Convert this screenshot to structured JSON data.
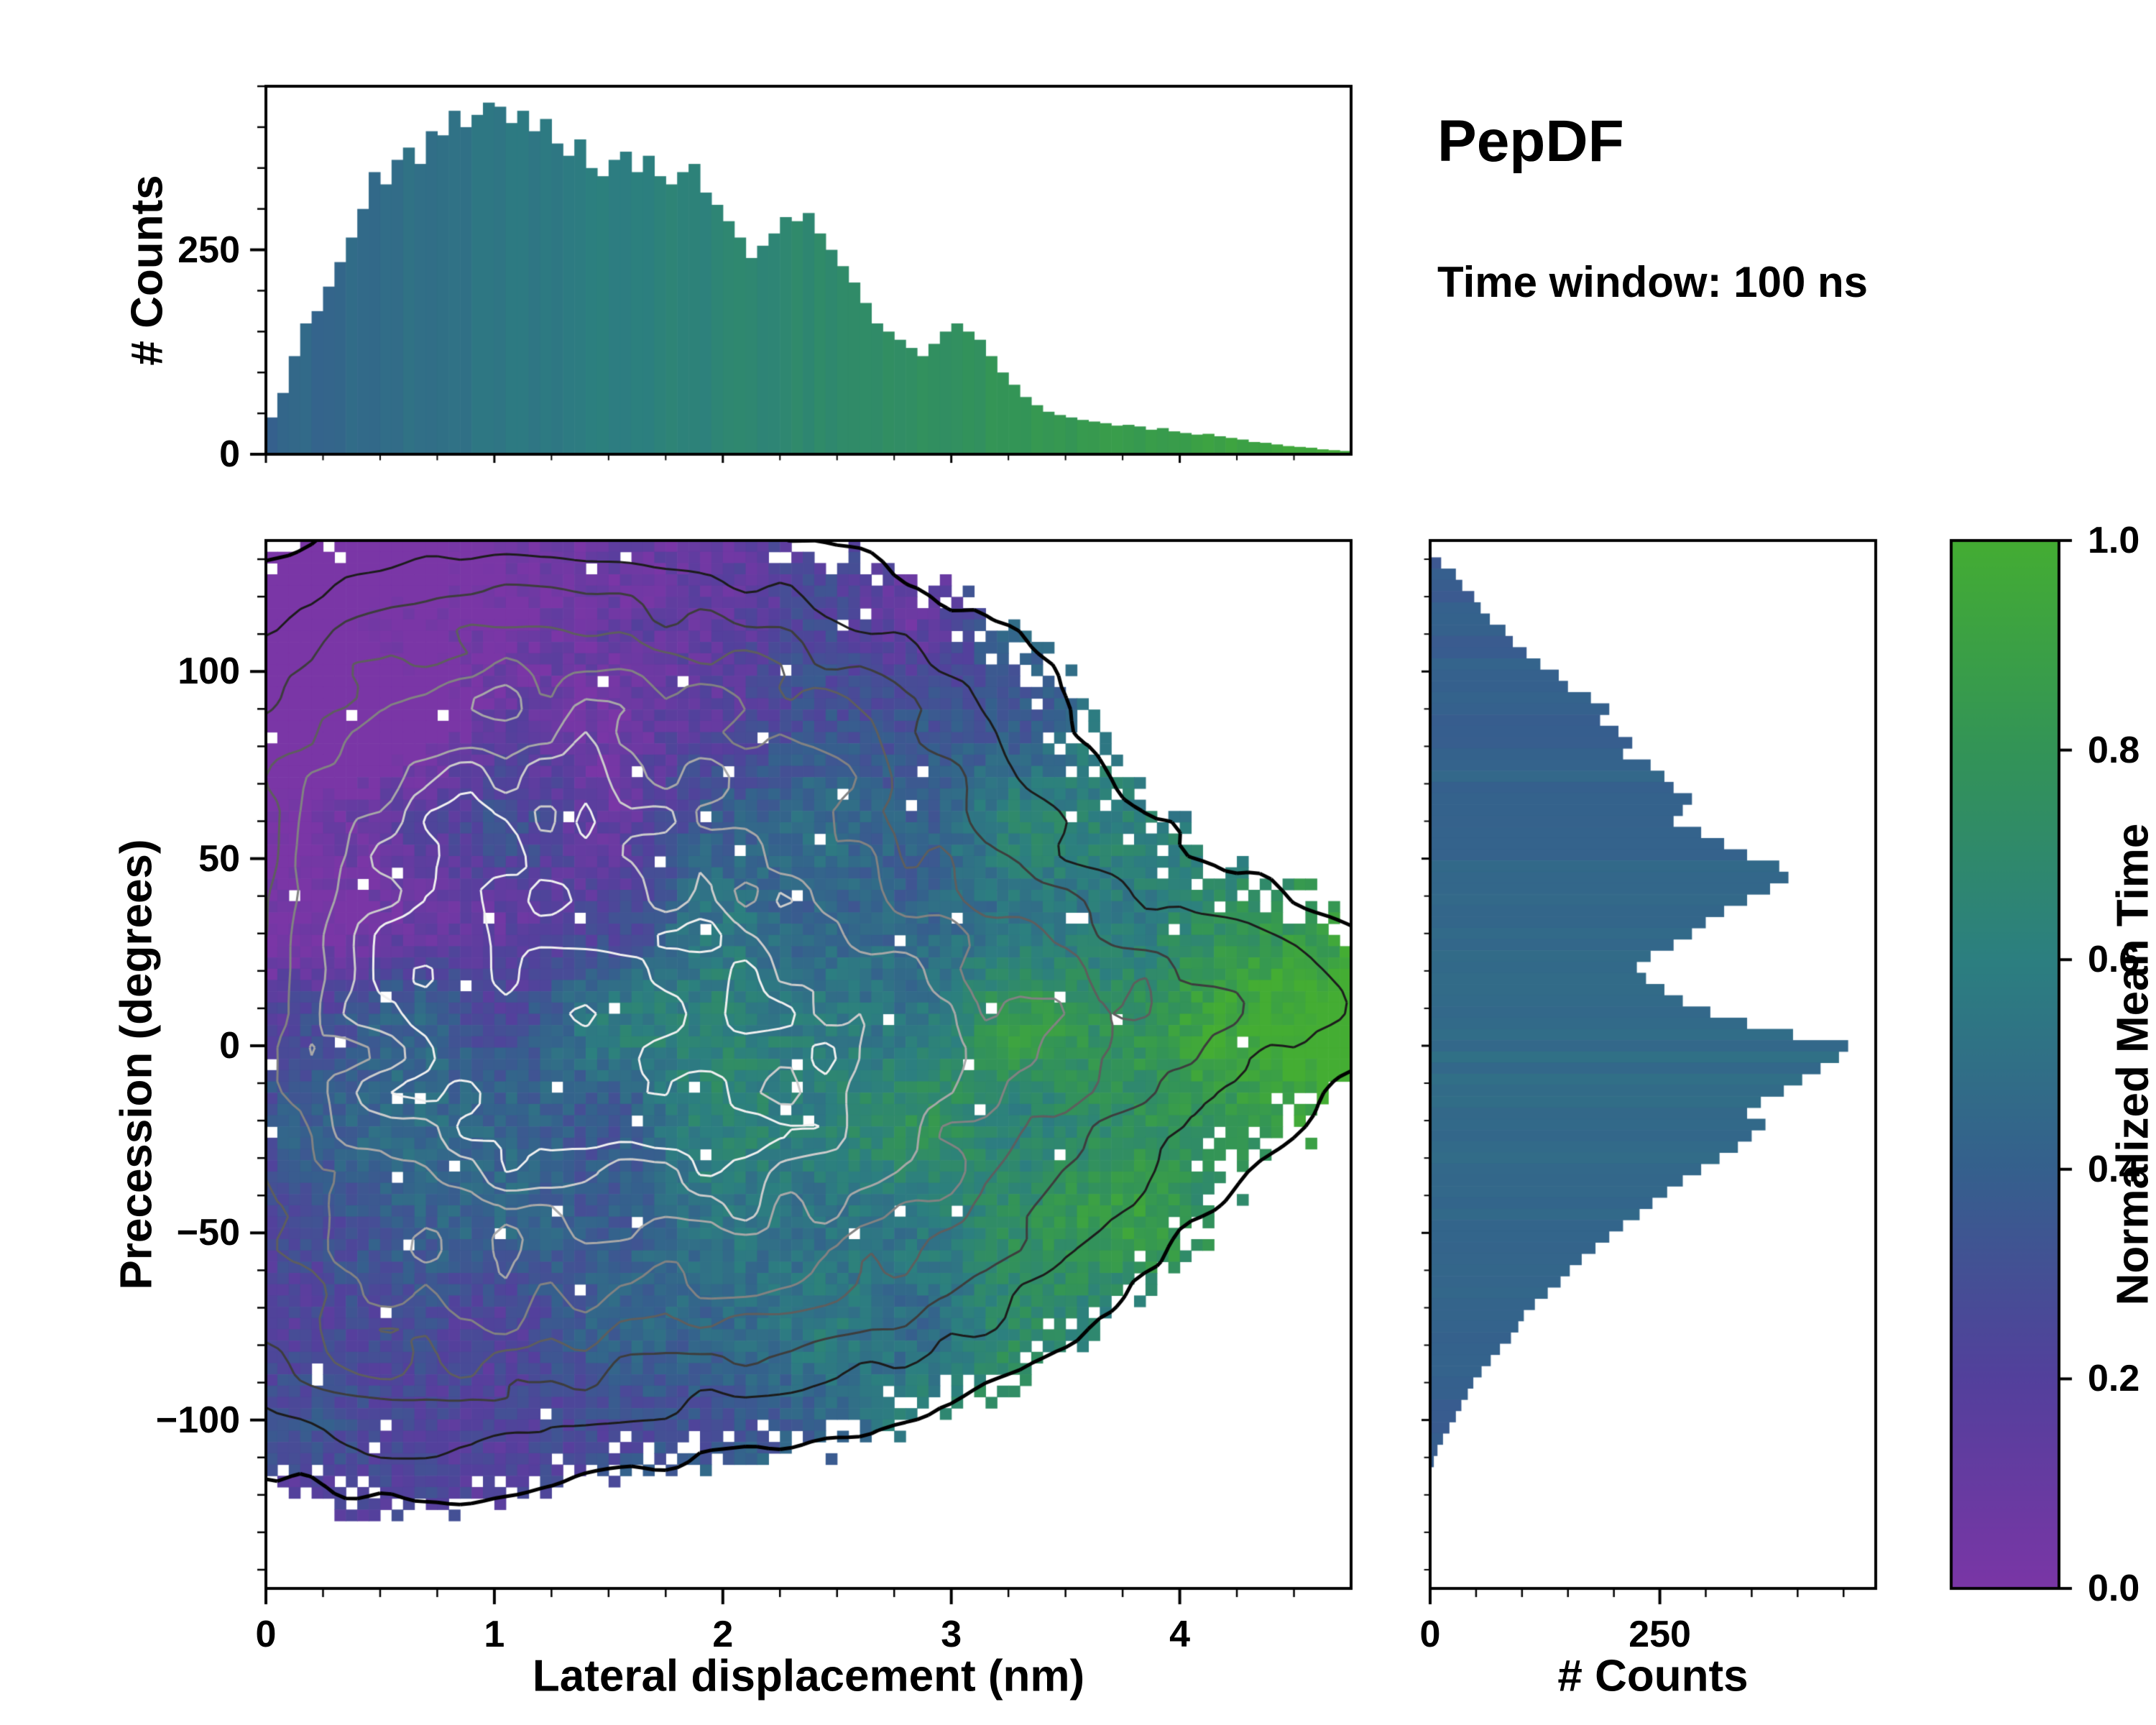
{
  "annotations": {
    "title": "PepDF",
    "subtitle": "Time window: 100 ns"
  },
  "colors": {
    "background": "#ffffff",
    "axis": "#000000",
    "contour_low": "#000000",
    "contour_high": "#f0f0f0",
    "colormap_stops": [
      {
        "t": 0.0,
        "hex": "#7a36a6"
      },
      {
        "t": 0.2,
        "hex": "#53409c"
      },
      {
        "t": 0.4,
        "hex": "#35608d"
      },
      {
        "t": 0.6,
        "hex": "#2c7f80"
      },
      {
        "t": 0.8,
        "hex": "#339457"
      },
      {
        "t": 1.0,
        "hex": "#44ad33"
      }
    ]
  },
  "chart_data": {
    "type": "heatmap",
    "title": "PepDF",
    "annotation": "Time window: 100 ns",
    "main_plot": {
      "xlabel": "Lateral displacement (nm)",
      "ylabel": "Precession (degrees)",
      "xlim": [
        0,
        4.75
      ],
      "ylim": [
        -145,
        135
      ],
      "xticks": {
        "values": [
          0,
          1,
          2,
          3,
          4
        ],
        "labels": [
          "0",
          "1",
          "2",
          "3",
          "4"
        ]
      },
      "yticks": {
        "values": [
          -100,
          -50,
          0,
          50,
          100
        ],
        "labels": [
          "−100",
          "−50",
          "0",
          "50",
          "100"
        ]
      },
      "grid": {
        "nx": 95,
        "ny": 93,
        "threshold": 0.03,
        "dropout": 0.012,
        "noise_factor_min": 0.45,
        "noise_factor_span": 1.1
      },
      "density_components": [
        {
          "w": 1.0,
          "x": 0.85,
          "y": 45,
          "sx": 0.6,
          "sy": 38
        },
        {
          "w": 0.95,
          "x": 0.95,
          "y": -8,
          "sx": 0.8,
          "sy": 34
        },
        {
          "w": 0.8,
          "x": 1.7,
          "y": 18,
          "sx": 0.85,
          "sy": 48
        },
        {
          "w": 0.6,
          "x": 2.35,
          "y": -8,
          "sx": 0.65,
          "sy": 36
        },
        {
          "w": 0.5,
          "x": 0.55,
          "y": -72,
          "sx": 0.5,
          "sy": 24
        },
        {
          "w": 0.38,
          "x": 1.1,
          "y": 90,
          "sx": 0.85,
          "sy": 22
        },
        {
          "w": 0.35,
          "x": 2.25,
          "y": 76,
          "sx": 0.6,
          "sy": 24
        },
        {
          "w": 0.38,
          "x": 3.05,
          "y": 2,
          "sx": 0.75,
          "sy": 30
        },
        {
          "w": 0.3,
          "x": 1.6,
          "y": -55,
          "sx": 0.7,
          "sy": 26
        },
        {
          "w": 0.22,
          "x": 2.6,
          "y": -45,
          "sx": 0.6,
          "sy": 24
        },
        {
          "w": 0.2,
          "x": 3.85,
          "y": 12,
          "sx": 0.55,
          "sy": 18
        },
        {
          "w": 0.13,
          "x": 4.35,
          "y": 14,
          "sx": 0.4,
          "sy": 11
        }
      ],
      "contour_levels": [
        {
          "level": 0.032,
          "color": "#000000",
          "width": 5
        },
        {
          "level": 0.09,
          "color": "#1c1c1c",
          "width": 3
        },
        {
          "level": 0.17,
          "color": "#3d3d3d",
          "width": 3
        },
        {
          "level": 0.27,
          "color": "#5e5e5e",
          "width": 3
        },
        {
          "level": 0.38,
          "color": "#828282",
          "width": 3
        },
        {
          "level": 0.52,
          "color": "#a8a8a8",
          "width": 3
        },
        {
          "level": 0.66,
          "color": "#cccccc",
          "width": 3
        },
        {
          "level": 0.82,
          "color": "#f0f0f0",
          "width": 3
        }
      ],
      "mean_time_field": {
        "base": 0.46,
        "x_ref": 1.5,
        "x_coef": 0.155,
        "y_coef": -0.0016,
        "abs_y_coef": -0.0022,
        "noise_amp": 0.32,
        "jitter": 0.09
      }
    },
    "top_histogram": {
      "type": "bar",
      "ylabel": "# Counts",
      "x_start": 0,
      "bin_width": 0.05,
      "ylim": [
        0,
        450
      ],
      "yticks": {
        "values": [
          0,
          250
        ],
        "labels": [
          "0",
          "250"
        ]
      },
      "values": [
        45,
        75,
        120,
        160,
        175,
        205,
        235,
        265,
        300,
        345,
        330,
        360,
        375,
        355,
        395,
        390,
        420,
        400,
        415,
        430,
        425,
        405,
        420,
        395,
        410,
        380,
        365,
        385,
        350,
        340,
        360,
        370,
        345,
        365,
        340,
        330,
        345,
        355,
        320,
        305,
        285,
        265,
        240,
        255,
        270,
        290,
        285,
        295,
        270,
        250,
        230,
        210,
        185,
        160,
        150,
        140,
        130,
        120,
        135,
        150,
        160,
        150,
        140,
        120,
        100,
        85,
        70,
        60,
        52,
        48,
        45,
        42,
        40,
        38,
        35,
        36,
        34,
        30,
        32,
        28,
        26,
        24,
        25,
        22,
        20,
        18,
        15,
        14,
        12,
        10,
        9,
        8,
        6,
        5,
        4
      ],
      "color_gradient": {
        "base": 0.42,
        "x_coef": 0.115,
        "jitter": 0.05
      }
    },
    "right_histogram": {
      "type": "bar",
      "xlabel": "# Counts",
      "y_start": 133.5,
      "bin_height": 3,
      "xlim": [
        0,
        485
      ],
      "xticks": {
        "values": [
          0,
          250
        ],
        "labels": [
          "0",
          "250"
        ]
      },
      "values": [
        0,
        12,
        28,
        35,
        48,
        55,
        65,
        82,
        90,
        105,
        120,
        140,
        150,
        175,
        195,
        185,
        205,
        220,
        210,
        240,
        255,
        265,
        285,
        275,
        265,
        295,
        320,
        345,
        380,
        390,
        370,
        345,
        320,
        300,
        285,
        265,
        240,
        225,
        235,
        255,
        275,
        305,
        345,
        395,
        455,
        445,
        425,
        405,
        385,
        360,
        345,
        365,
        350,
        335,
        315,
        295,
        275,
        258,
        242,
        228,
        210,
        195,
        180,
        165,
        152,
        142,
        128,
        114,
        102,
        96,
        88,
        76,
        66,
        56,
        47,
        41,
        34,
        28,
        21,
        14,
        8,
        4,
        0,
        0,
        0,
        0,
        0,
        0,
        0,
        0,
        0,
        0,
        0
      ],
      "color_gradient": {
        "base": 0.48,
        "abs_y_coef": -0.0008,
        "jitter": 0.06
      }
    },
    "colorbar": {
      "label": "Normalized Mean Time",
      "lim": [
        0,
        1
      ],
      "ticks": {
        "values": [
          0,
          0.2,
          0.4,
          0.6,
          0.8,
          1
        ],
        "labels": [
          "0.0",
          "0.2",
          "0.4",
          "0.6",
          "0.8",
          "1.0"
        ]
      }
    }
  }
}
